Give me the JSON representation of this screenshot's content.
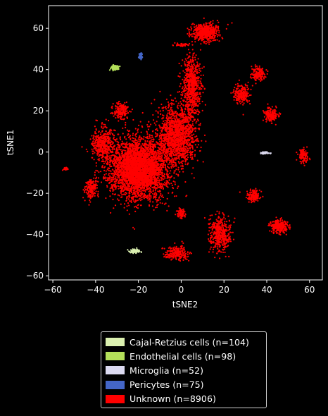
{
  "chart_data": {
    "type": "scatter",
    "title": "",
    "xlabel": "tSNE2",
    "ylabel": "tSNE1",
    "xlim": [
      -62,
      66
    ],
    "ylim": [
      -62,
      71
    ],
    "x_ticks": [
      -60,
      -40,
      -20,
      0,
      20,
      40,
      60
    ],
    "y_ticks": [
      -60,
      -40,
      -20,
      0,
      20,
      40,
      60
    ],
    "x_tick_labels": [
      "−60",
      "−40",
      "−20",
      "0",
      "20",
      "40",
      "60"
    ],
    "y_tick_labels": [
      "−60",
      "−40",
      "−20",
      "0",
      "20",
      "40",
      "60"
    ],
    "grid": false,
    "legend_position": "below",
    "series": [
      {
        "name": "Cajal-Retzius cells (n=104)",
        "color": "#dbf0b0",
        "clusters": [
          {
            "center": [
              -22,
              -48
            ],
            "spread": [
              2.5,
              0.8
            ],
            "count": 104
          }
        ]
      },
      {
        "name": "Endothelial cells (n=98)",
        "color": "#b4e05a",
        "clusters": [
          {
            "center": [
              -31,
              41
            ],
            "spread": [
              1.8,
              1.0
            ],
            "count": 98
          }
        ]
      },
      {
        "name": "Microglia (n=52)",
        "color": "#dcdaf0",
        "clusters": [
          {
            "center": [
              39,
              -0.5
            ],
            "spread": [
              2.0,
              0.5
            ],
            "count": 52
          }
        ]
      },
      {
        "name": "Pericytes (n=75)",
        "color": "#4466c8",
        "clusters": [
          {
            "center": [
              -19,
              46.5
            ],
            "spread": [
              0.7,
              1.3
            ],
            "count": 75
          }
        ]
      },
      {
        "name": "Unknown (n=8906)",
        "color": "#ff0000",
        "clusters": [
          {
            "center": [
              -20,
              -8
            ],
            "spread": [
              12,
              13
            ],
            "count": 3600
          },
          {
            "center": [
              -2,
              8
            ],
            "spread": [
              8,
              13
            ],
            "count": 1400
          },
          {
            "center": [
              5,
              32
            ],
            "spread": [
              4,
              14
            ],
            "count": 700
          },
          {
            "center": [
              11,
              58
            ],
            "spread": [
              6,
              4
            ],
            "count": 520
          },
          {
            "center": [
              -37,
              4
            ],
            "spread": [
              4.5,
              7
            ],
            "count": 400
          },
          {
            "center": [
              -42,
              -18
            ],
            "spread": [
              2.5,
              4.5
            ],
            "count": 180
          },
          {
            "center": [
              -28,
              20
            ],
            "spread": [
              3,
              3.5
            ],
            "count": 180
          },
          {
            "center": [
              28,
              28
            ],
            "spread": [
              3,
              4
            ],
            "count": 220
          },
          {
            "center": [
              36,
              38
            ],
            "spread": [
              3,
              3
            ],
            "count": 160
          },
          {
            "center": [
              42,
              18
            ],
            "spread": [
              3,
              3
            ],
            "count": 170
          },
          {
            "center": [
              57,
              -2
            ],
            "spread": [
              2,
              3
            ],
            "count": 110
          },
          {
            "center": [
              34,
              -21
            ],
            "spread": [
              2.8,
              2.5
            ],
            "count": 160
          },
          {
            "center": [
              46,
              -36
            ],
            "spread": [
              3.5,
              3
            ],
            "count": 260
          },
          {
            "center": [
              18,
              -40
            ],
            "spread": [
              4.5,
              7.5
            ],
            "count": 420
          },
          {
            "center": [
              0,
              -30
            ],
            "spread": [
              2,
              2
            ],
            "count": 70
          },
          {
            "center": [
              -2,
              -49
            ],
            "spread": [
              5,
              3
            ],
            "count": 230
          },
          {
            "center": [
              -54,
              -8
            ],
            "spread": [
              1,
              0.8
            ],
            "count": 30
          },
          {
            "center": [
              0,
              52
            ],
            "spread": [
              3,
              0.7
            ],
            "count": 40
          },
          {
            "center": [
              -12,
              0
            ],
            "spread": [
              6,
              8
            ],
            "count": 56
          }
        ]
      }
    ]
  }
}
